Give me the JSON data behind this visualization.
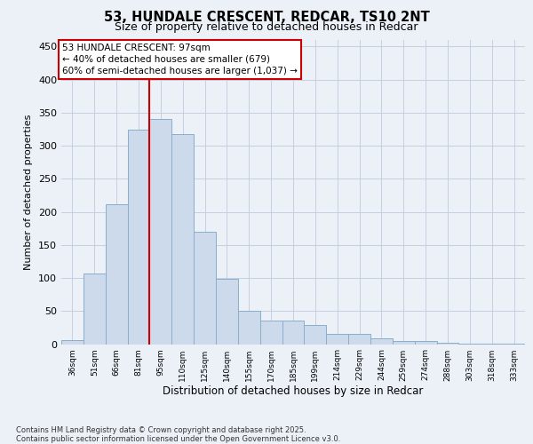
{
  "title_line1": "53, HUNDALE CRESCENT, REDCAR, TS10 2NT",
  "title_line2": "Size of property relative to detached houses in Redcar",
  "xlabel": "Distribution of detached houses by size in Redcar",
  "ylabel": "Number of detached properties",
  "categories": [
    "36sqm",
    "51sqm",
    "66sqm",
    "81sqm",
    "95sqm",
    "110sqm",
    "125sqm",
    "140sqm",
    "155sqm",
    "170sqm",
    "185sqm",
    "199sqm",
    "214sqm",
    "229sqm",
    "244sqm",
    "259sqm",
    "274sqm",
    "288sqm",
    "303sqm",
    "318sqm",
    "333sqm"
  ],
  "values": [
    6,
    107,
    211,
    325,
    340,
    318,
    170,
    99,
    50,
    36,
    36,
    29,
    15,
    15,
    9,
    5,
    5,
    2,
    1,
    1,
    1
  ],
  "bar_color": "#ccdaec",
  "bar_edge_color": "#8aaecb",
  "vline_x": 3.5,
  "vline_color": "#cc0000",
  "annotation_text": "53 HUNDALE CRESCENT: 97sqm\n← 40% of detached houses are smaller (679)\n60% of semi-detached houses are larger (1,037) →",
  "ann_edge_color": "#cc0000",
  "ylim_max": 460,
  "yticks": [
    0,
    50,
    100,
    150,
    200,
    250,
    300,
    350,
    400,
    450
  ],
  "bg_color": "#ecf1f8",
  "grid_color": "#c5cfe0",
  "footer": "Contains HM Land Registry data © Crown copyright and database right 2025.\nContains public sector information licensed under the Open Government Licence v3.0."
}
